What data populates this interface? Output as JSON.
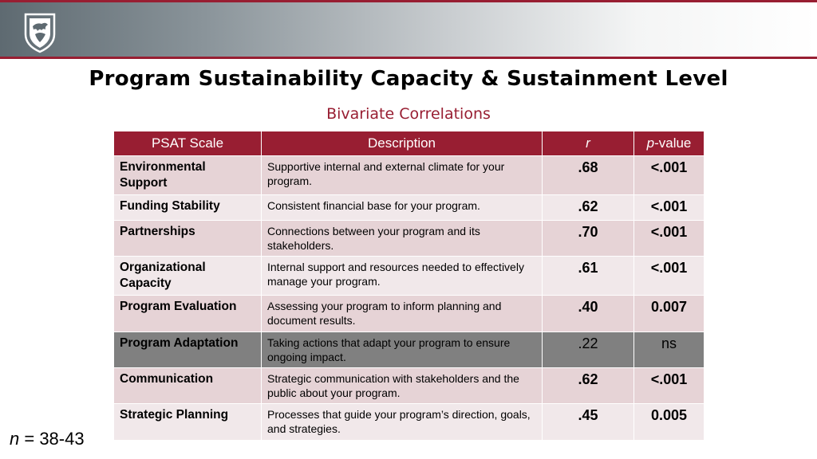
{
  "slide": {
    "title": "Program Sustainability Capacity & Sustainment Level",
    "subtitle": "Bivariate Correlations",
    "logo_icon": "wsu-cougar-shield-icon",
    "n_label_var": "n",
    "n_label_rest": " = 38-43"
  },
  "colors": {
    "accent": "#981e32",
    "header_gray": "#5e6a71",
    "row_odd": "#e6d3d6",
    "row_even": "#f1e8ea",
    "row_dim": "#808080"
  },
  "table": {
    "headers": {
      "scale": "PSAT Scale",
      "description": "Description",
      "r": "r",
      "p_italic": "p",
      "p_rest": "-value"
    },
    "rows": [
      {
        "scale": "Environmental Support",
        "description": "Supportive internal and external climate for your program.",
        "r": ".68",
        "p": "<.001"
      },
      {
        "scale": "Funding Stability",
        "description": "Consistent financial base for your program.",
        "r": ".62",
        "p": "<.001"
      },
      {
        "scale": "Partnerships",
        "description": "Connections between your program and its stakeholders.",
        "r": ".70",
        "p": "<.001"
      },
      {
        "scale": "Organizational Capacity",
        "description": "Internal support and resources needed to effectively manage your program.",
        "r": ".61",
        "p": "<.001"
      },
      {
        "scale": "Program Evaluation",
        "description": "Assessing your program to inform planning and document results.",
        "r": ".40",
        "p": "0.007"
      },
      {
        "scale": "Program Adaptation",
        "description": "Taking actions that adapt your program to ensure ongoing impact.",
        "r": ".22",
        "p": "ns"
      },
      {
        "scale": "Communication",
        "description": "Strategic communication with stakeholders and the public about your program.",
        "r": ".62",
        "p": "<.001"
      },
      {
        "scale": "Strategic Planning",
        "description": "Processes that guide your program’s direction, goals, and strategies.",
        "r": ".45",
        "p": "0.005"
      }
    ]
  }
}
